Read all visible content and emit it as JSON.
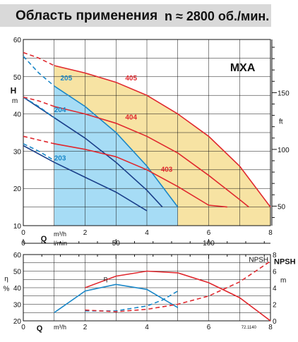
{
  "header": {
    "title": "Область применения",
    "speed": "n ≈ 2800 об./мин."
  },
  "colors": {
    "small_area": "#a6dcf5",
    "large_area": "#f7e3a3",
    "small_curves": "#1a87c8",
    "large_curves": "#e0282e",
    "dark_blue": "#1a3f8a",
    "grid": "#111111"
  },
  "chart_data": [
    {
      "type": "line",
      "title": "MXA",
      "x_axis": {
        "label": "Q",
        "units": [
          "m³/h",
          "l/min"
        ],
        "ticks": [
          "0",
          "2",
          "4",
          "6",
          "8"
        ],
        "range": [
          0,
          8
        ]
      },
      "secondary_x_axis": {
        "label": "l/min",
        "ticks": [
          "0",
          "50",
          "100"
        ],
        "range": [
          0,
          133.3
        ]
      },
      "y_axis": {
        "label": "H",
        "unit": "m",
        "ticks": [
          "10",
          "20",
          "30",
          "40",
          "50",
          "60"
        ],
        "range": [
          10,
          60
        ]
      },
      "secondary_y_axis": {
        "unit": "ft",
        "ticks": [
          "50",
          "100",
          "150"
        ],
        "range": [
          32.8,
          196.9
        ]
      },
      "grid": true,
      "series": [
        {
          "name": "203",
          "color": "#1a3f8a",
          "style": "solid",
          "x": [
            0.0,
            1.0,
            2.0,
            3.0,
            4.0
          ],
          "y": [
            31.5,
            27.0,
            23.0,
            19.0,
            14.0
          ]
        },
        {
          "name": "204",
          "color": "#1a3f8a",
          "style": "solid",
          "x": [
            0.0,
            1.0,
            2.0,
            3.0,
            4.0,
            4.5
          ],
          "y": [
            44.5,
            39.0,
            33.5,
            27.0,
            19.5,
            15.0
          ]
        },
        {
          "name": "205",
          "color": "#1a87c8",
          "style": "solid",
          "x": [
            1.0,
            2.0,
            3.0,
            4.0,
            5.0
          ],
          "y": [
            47.5,
            42.0,
            35.0,
            26.0,
            15.0
          ]
        },
        {
          "name": "",
          "color": "#1a87c8",
          "style": "dashed",
          "x": [
            0.0,
            0.5,
            1.0
          ],
          "y": [
            55.5,
            51.0,
            47.5
          ]
        },
        {
          "name": "",
          "color": "#1a87c8",
          "style": "dashed",
          "x": [
            0.0,
            0.5,
            1.0
          ],
          "y": [
            32.0,
            30.0,
            27.5
          ]
        },
        {
          "name": "",
          "color": "#1a87c8",
          "style": "dashed",
          "x": [
            0.0,
            0.5,
            1.0
          ],
          "y": [
            44.5,
            42.0,
            39.0
          ]
        },
        {
          "name": "403",
          "color": "#e0282e",
          "style": "solid",
          "x": [
            1.0,
            2.0,
            3.0,
            4.0,
            5.0,
            6.0,
            6.6
          ],
          "y": [
            32.0,
            30.5,
            28.5,
            25.0,
            20.5,
            15.5,
            15.0
          ]
        },
        {
          "name": "404",
          "color": "#e0282e",
          "style": "solid",
          "x": [
            1.0,
            2.0,
            3.0,
            4.0,
            5.0,
            6.0,
            7.0,
            7.3
          ],
          "y": [
            42.0,
            40.0,
            37.5,
            34.0,
            29.5,
            23.5,
            17.0,
            15.0
          ]
        },
        {
          "name": "405",
          "color": "#e0282e",
          "style": "solid",
          "x": [
            1.0,
            2.0,
            3.0,
            4.0,
            5.0,
            6.0,
            7.0,
            8.0
          ],
          "y": [
            53.0,
            51.0,
            48.5,
            45.0,
            40.0,
            34.0,
            26.0,
            15.0
          ]
        },
        {
          "name": "",
          "color": "#e0282e",
          "style": "dashed",
          "x": [
            0.0,
            0.5,
            1.0
          ],
          "y": [
            56.5,
            55.0,
            53.0
          ]
        },
        {
          "name": "",
          "color": "#e0282e",
          "style": "dashed",
          "x": [
            0.0,
            0.5,
            1.0
          ],
          "y": [
            44.5,
            43.5,
            42.0
          ]
        },
        {
          "name": "",
          "color": "#e0282e",
          "style": "dashed",
          "x": [
            0.0,
            0.5,
            1.0
          ],
          "y": [
            34.0,
            33.0,
            32.0
          ]
        }
      ],
      "areas": [
        {
          "color": "#a6dcf5",
          "x": [
            1.0,
            2.0,
            3.0,
            4.0,
            5.0,
            5.0,
            1.0
          ],
          "y": [
            47.5,
            42.0,
            35.0,
            26.0,
            15.0,
            10.0,
            10.0
          ]
        },
        {
          "color": "#f7e3a3",
          "x": [
            1.0,
            2.0,
            3.0,
            4.0,
            5.0,
            6.0,
            7.0,
            8.0,
            8.0,
            1.0
          ],
          "y": [
            53.0,
            51.0,
            48.5,
            45.0,
            40.0,
            34.0,
            26.0,
            15.0,
            10.0,
            10.0
          ]
        }
      ]
    },
    {
      "type": "line",
      "x_axis": {
        "label": "Q",
        "unit": "m³/h",
        "ticks": [
          "0",
          "2",
          "4",
          "6",
          "8"
        ],
        "range": [
          0,
          8
        ]
      },
      "secondary_x_axis": {
        "ticks": [
          "0",
          "50",
          "100"
        ],
        "range": [
          0,
          133.3
        ]
      },
      "y_axis": {
        "label": "η",
        "unit": "%",
        "ticks": [
          "20",
          "30",
          "40",
          "50",
          "60"
        ],
        "range": [
          20,
          60
        ]
      },
      "secondary_y_axis": {
        "label": "NPSH",
        "unit": "m",
        "ticks": [
          "0",
          "2",
          "4",
          "6",
          "8"
        ],
        "range": [
          0,
          8
        ]
      },
      "inner_label": "NPSH",
      "eta_label": "η",
      "footnote": "72.1140",
      "grid": true,
      "series": [
        {
          "name": "η",
          "color": "#1a87c8",
          "style": "solid",
          "axis": "left",
          "x": [
            1.0,
            2.0,
            3.0,
            4.0,
            5.0
          ],
          "y": [
            25.0,
            38.0,
            42.0,
            39.0,
            28.0
          ]
        },
        {
          "name": "",
          "color": "#e0282e",
          "style": "solid",
          "axis": "left",
          "x": [
            2.0,
            3.0,
            4.0,
            5.0,
            6.0,
            7.0,
            8.0
          ],
          "y": [
            40.0,
            47.0,
            50.0,
            49.0,
            43.0,
            34.0,
            20.0
          ]
        },
        {
          "name": "NPSH",
          "color": "#1a87c8",
          "style": "dashed",
          "axis": "right",
          "x": [
            2.0,
            3.0,
            4.0,
            4.5,
            5.0
          ],
          "y": [
            1.2,
            1.2,
            1.8,
            2.5,
            3.6
          ]
        },
        {
          "name": "NPSH",
          "color": "#e0282e",
          "style": "dashed",
          "axis": "right",
          "x": [
            2.0,
            3.0,
            4.0,
            5.0,
            6.0,
            7.0,
            8.0
          ],
          "y": [
            1.3,
            1.1,
            1.4,
            2.0,
            3.0,
            4.7,
            7.2
          ]
        }
      ]
    }
  ]
}
